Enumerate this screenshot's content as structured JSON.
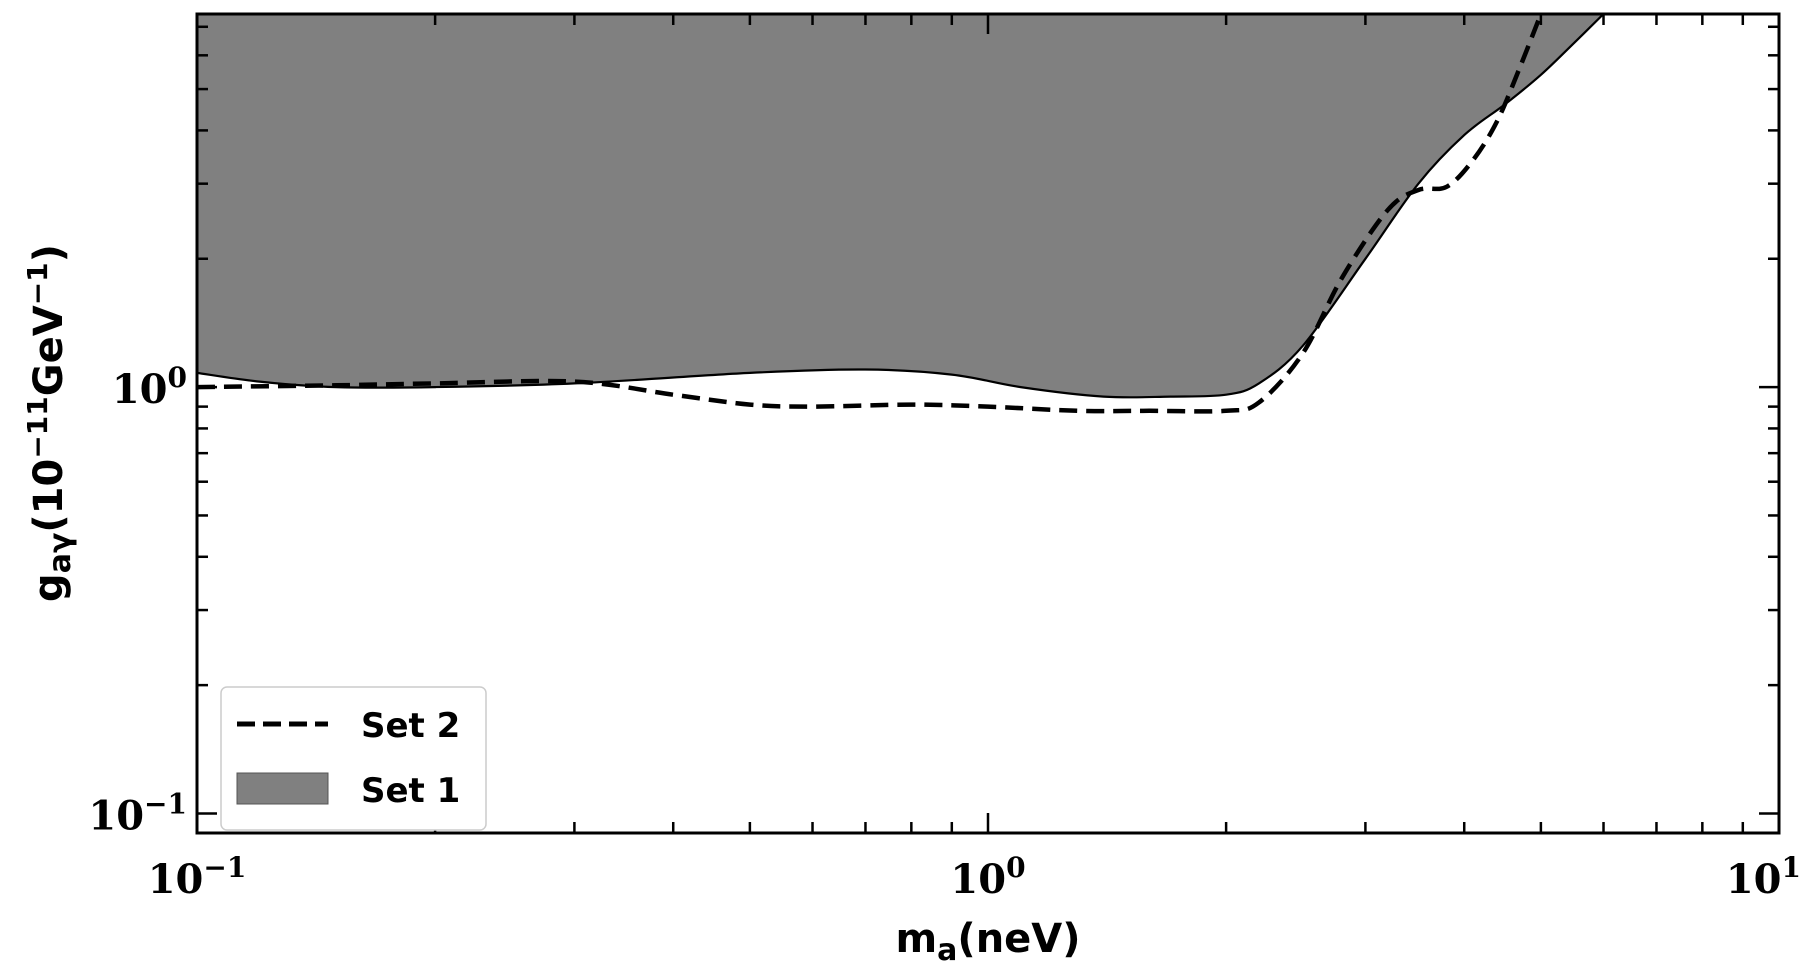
{
  "chart_data": {
    "type": "area",
    "xscale": "log",
    "yscale": "log",
    "xlim": [
      0.1,
      10
    ],
    "ylim": [
      0.09,
      7.5
    ],
    "xlabel": {
      "main": "m",
      "sub": "a",
      "rest": "(neV)"
    },
    "ylabel": {
      "main": "g",
      "sub": "aγ",
      "rest": "(10",
      "exp": "−11",
      "rest2": "GeV",
      "exp2": "−1",
      "close": ")"
    },
    "xticks": [
      {
        "value": 0.1,
        "base": "10",
        "exp": "−1"
      },
      {
        "value": 1,
        "base": "10",
        "exp": "0"
      },
      {
        "value": 10,
        "base": "10",
        "exp": "1"
      }
    ],
    "yticks": [
      {
        "value": 0.1,
        "base": "10",
        "exp": "−1"
      },
      {
        "value": 1,
        "base": "10",
        "exp": "0"
      }
    ],
    "series": [
      {
        "name": "Set 1",
        "style": "filled-region",
        "color": "#808080",
        "edge_color": "#000000",
        "x": [
          0.1,
          0.12,
          0.15,
          0.2,
          0.3,
          0.5,
          0.7,
          0.9,
          1.1,
          1.4,
          1.7,
          2.0,
          2.2,
          2.5,
          3.0,
          3.5,
          4.0,
          4.5,
          5.0,
          5.5,
          6.0
        ],
        "y": [
          1.08,
          1.03,
          1.0,
          1.0,
          1.02,
          1.08,
          1.1,
          1.07,
          1.0,
          0.95,
          0.95,
          0.96,
          1.02,
          1.25,
          2.0,
          3.0,
          3.9,
          4.6,
          5.4,
          6.4,
          7.5
        ]
      },
      {
        "name": "Set 2",
        "style": "dashed",
        "color": "#000000",
        "x": [
          0.1,
          0.15,
          0.2,
          0.3,
          0.4,
          0.5,
          0.6,
          0.8,
          1.0,
          1.3,
          1.6,
          2.0,
          2.2,
          2.5,
          2.8,
          3.2,
          3.5,
          3.8,
          4.1,
          4.4,
          4.7,
          5.0
        ],
        "y": [
          1.0,
          1.01,
          1.02,
          1.03,
          0.96,
          0.91,
          0.9,
          0.91,
          0.9,
          0.88,
          0.88,
          0.88,
          0.92,
          1.2,
          1.8,
          2.6,
          2.9,
          2.95,
          3.4,
          4.2,
          5.6,
          7.5
        ]
      }
    ],
    "legend": {
      "position": "lower-left",
      "entries": [
        {
          "label": "Set 2",
          "style": "dashed",
          "color": "#000000"
        },
        {
          "label": "Set 1",
          "style": "patch",
          "color": "#808080"
        }
      ]
    }
  }
}
